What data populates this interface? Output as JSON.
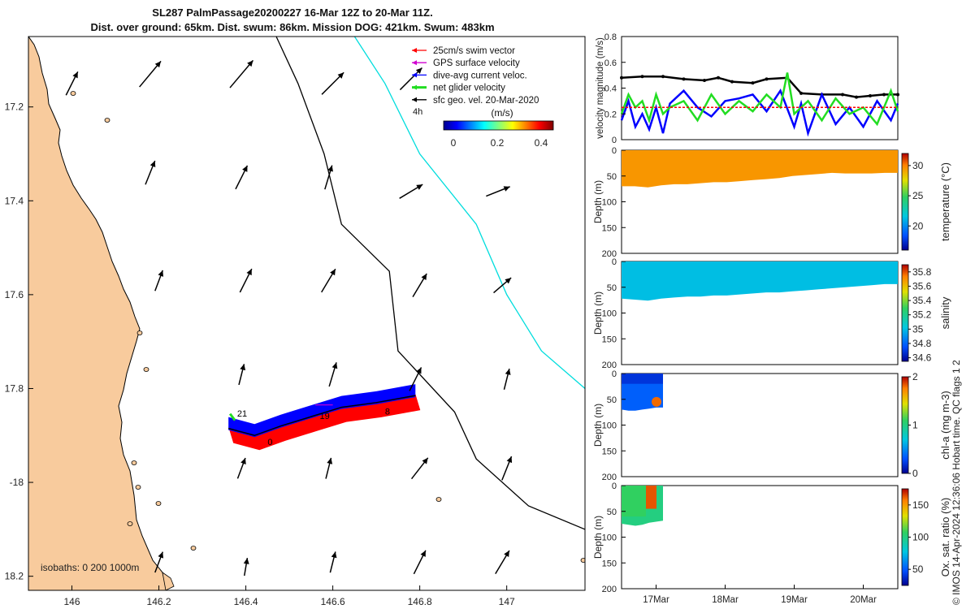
{
  "title": {
    "line1": "SL287 PalmPassage20200227 16-Mar 12Z to 20-Mar 11Z.",
    "line2": "Dist. over ground: 65km. Dist. swum: 86km. Mission DOG: 421km. Swum: 483km"
  },
  "footer_note": "© IMOS 14-Apr-2024 12:36:06 Hobart time. QC flags 1  2",
  "colors": {
    "land": "#f8cb9d",
    "swim": "#ff0000",
    "gps": "#d000d0",
    "current": "#0000ff",
    "net": "#22dd22",
    "geo": "#000000",
    "coast_line": "#00dddd"
  },
  "chart_data": [
    {
      "id": "map",
      "type": "scatter",
      "title": "SL287 PalmPassage20200227 16-Mar 12Z to 20-Mar 11Z.",
      "xlim": [
        145.9,
        147.18
      ],
      "ylim": [
        -18.23,
        -17.05
      ],
      "xticks": [
        146,
        146.2,
        146.4,
        146.6,
        146.8,
        147
      ],
      "xtick_labels": [
        "146",
        "146.2",
        "146.4",
        "146.6",
        "146.8",
        "147"
      ],
      "yticks": [
        -17.2,
        -17.4,
        -17.6,
        -17.8,
        -18,
        -18.2
      ],
      "ytick_labels": [
        "17.2",
        "17.4",
        "17.6",
        "17.8",
        "-18",
        "18.2"
      ],
      "legend": [
        {
          "label": "25cm/s swim vector",
          "color": "#ff0000"
        },
        {
          "label": "GPS surface velocity",
          "color": "#d000d0"
        },
        {
          "label": "dive-avg current veloc.",
          "color": "#0000ff"
        },
        {
          "label": "net glider velocity",
          "color": "#22dd22"
        },
        {
          "label": "sfc geo. vel. 20-Mar-2020",
          "color": "#000000"
        }
      ],
      "legend_extra": "4h",
      "colorbar": {
        "label": "(m/s)",
        "ticks": [
          0,
          0.2,
          0.4
        ],
        "tick_labels": [
          "0",
          "0.2",
          "0.4"
        ],
        "range": [
          0,
          0.5
        ]
      },
      "isobath_label": "isobaths: 0   200  1000m",
      "geo_vectors": [
        {
          "lon": 146.0,
          "lat": -17.15,
          "u": 0.5,
          "v": 1.0
        },
        {
          "lon": 146.18,
          "lat": -17.13,
          "u": 1.0,
          "v": 1.2
        },
        {
          "lon": 146.39,
          "lat": -17.13,
          "u": 1.1,
          "v": 1.3
        },
        {
          "lon": 146.6,
          "lat": -17.15,
          "u": 1.0,
          "v": 1.0
        },
        {
          "lon": 146.78,
          "lat": -17.14,
          "u": 1.0,
          "v": 1.0
        },
        {
          "lon": 146.18,
          "lat": -17.34,
          "u": 0.4,
          "v": 1.0
        },
        {
          "lon": 146.39,
          "lat": -17.35,
          "u": 0.5,
          "v": 1.0
        },
        {
          "lon": 146.59,
          "lat": -17.35,
          "u": 0.3,
          "v": 1.0
        },
        {
          "lon": 146.78,
          "lat": -17.38,
          "u": 1.0,
          "v": 0.6
        },
        {
          "lon": 146.98,
          "lat": -17.38,
          "u": 1.0,
          "v": 0.4
        },
        {
          "lon": 146.2,
          "lat": -17.57,
          "u": 0.3,
          "v": 0.8
        },
        {
          "lon": 146.4,
          "lat": -17.57,
          "u": 0.5,
          "v": 1.0
        },
        {
          "lon": 146.59,
          "lat": -17.57,
          "u": 0.6,
          "v": 1.0
        },
        {
          "lon": 146.8,
          "lat": -17.58,
          "u": 0.6,
          "v": 1.0
        },
        {
          "lon": 146.99,
          "lat": -17.58,
          "u": 0.7,
          "v": 0.6
        },
        {
          "lon": 146.39,
          "lat": -17.77,
          "u": 0.2,
          "v": 0.8
        },
        {
          "lon": 146.6,
          "lat": -17.77,
          "u": 0.3,
          "v": 1.0
        },
        {
          "lon": 146.79,
          "lat": -17.78,
          "u": 0.5,
          "v": 1.0
        },
        {
          "lon": 147.0,
          "lat": -17.78,
          "u": 0.2,
          "v": 0.8
        },
        {
          "lon": 146.39,
          "lat": -17.97,
          "u": 0.3,
          "v": 0.8
        },
        {
          "lon": 146.59,
          "lat": -17.97,
          "u": 0.2,
          "v": 0.8
        },
        {
          "lon": 146.8,
          "lat": -17.97,
          "u": 0.7,
          "v": 0.9
        },
        {
          "lon": 147.0,
          "lat": -17.97,
          "u": 0.4,
          "v": 1.0
        },
        {
          "lon": 146.2,
          "lat": -18.17,
          "u": 0.3,
          "v": 0.8
        },
        {
          "lon": 146.4,
          "lat": -18.18,
          "u": 0.1,
          "v": 0.6
        },
        {
          "lon": 146.6,
          "lat": -18.17,
          "u": 0.2,
          "v": 0.8
        },
        {
          "lon": 146.8,
          "lat": -18.17,
          "u": 0.5,
          "v": 1.0
        },
        {
          "lon": 146.99,
          "lat": -18.17,
          "u": 0.6,
          "v": 1.0
        }
      ],
      "glider_track": [
        {
          "lon": 146.36,
          "lat": -17.885
        },
        {
          "lon": 146.42,
          "lat": -17.9
        },
        {
          "lon": 146.48,
          "lat": -17.88
        },
        {
          "lon": 146.55,
          "lat": -17.86
        },
        {
          "lon": 146.62,
          "lat": -17.84
        },
        {
          "lon": 146.7,
          "lat": -17.83
        },
        {
          "lon": 146.79,
          "lat": -17.815
        }
      ],
      "track_day_labels": [
        {
          "lon": 146.38,
          "lat": -17.86,
          "text": "21"
        },
        {
          "lon": 146.45,
          "lat": -17.92,
          "text": "0"
        },
        {
          "lon": 146.57,
          "lat": -17.865,
          "text": "19"
        },
        {
          "lon": 146.72,
          "lat": -17.855,
          "text": "8"
        }
      ],
      "isobath_1000": [
        {
          "lon": 146.47,
          "lat": -17.05
        },
        {
          "lon": 146.52,
          "lat": -17.15
        },
        {
          "lon": 146.58,
          "lat": -17.3
        },
        {
          "lon": 146.62,
          "lat": -17.45
        },
        {
          "lon": 146.73,
          "lat": -17.55
        },
        {
          "lon": 146.75,
          "lat": -17.72
        },
        {
          "lon": 146.88,
          "lat": -17.85
        },
        {
          "lon": 146.93,
          "lat": -17.95
        },
        {
          "lon": 147.05,
          "lat": -18.05
        },
        {
          "lon": 147.18,
          "lat": -18.1
        }
      ],
      "isobath_coast": [
        {
          "lon": 146.65,
          "lat": -17.05
        },
        {
          "lon": 146.72,
          "lat": -17.15
        },
        {
          "lon": 146.8,
          "lat": -17.3
        },
        {
          "lon": 146.93,
          "lat": -17.45
        },
        {
          "lon": 147.0,
          "lat": -17.6
        },
        {
          "lon": 147.08,
          "lat": -17.72
        },
        {
          "lon": 147.18,
          "lat": -17.8
        }
      ]
    },
    {
      "id": "velocity",
      "type": "line",
      "ylabel": "velocity magnitude (m/s)",
      "xlim": [
        16.5,
        20.5
      ],
      "ylim": [
        0,
        0.8
      ],
      "yticks": [
        0,
        0.2,
        0.4,
        0.6,
        0.8
      ],
      "ytick_labels": [
        "0",
        "0.2",
        "0.4",
        "0.6",
        "0.8"
      ],
      "series": [
        {
          "name": "sfc geo. vel.",
          "color": "#000000",
          "x": [
            16.5,
            16.8,
            17.1,
            17.4,
            17.7,
            17.9,
            18.1,
            18.4,
            18.6,
            18.9,
            19.1,
            19.4,
            19.7,
            19.9,
            20.1,
            20.3,
            20.5
          ],
          "y": [
            0.48,
            0.49,
            0.49,
            0.47,
            0.46,
            0.48,
            0.45,
            0.44,
            0.47,
            0.48,
            0.36,
            0.35,
            0.35,
            0.33,
            0.34,
            0.35,
            0.35
          ]
        },
        {
          "name": "dive-avg current veloc.",
          "color": "#0000ff",
          "x": [
            16.5,
            16.6,
            16.7,
            16.8,
            16.9,
            17.0,
            17.1,
            17.2,
            17.4,
            17.6,
            17.8,
            18.0,
            18.2,
            18.4,
            18.6,
            18.8,
            19.0,
            19.1,
            19.2,
            19.4,
            19.6,
            19.8,
            20.0,
            20.2,
            20.4,
            20.5
          ],
          "y": [
            0.15,
            0.3,
            0.1,
            0.2,
            0.08,
            0.25,
            0.05,
            0.28,
            0.38,
            0.25,
            0.18,
            0.3,
            0.32,
            0.35,
            0.22,
            0.38,
            0.1,
            0.28,
            0.05,
            0.35,
            0.12,
            0.25,
            0.1,
            0.3,
            0.15,
            0.28
          ]
        },
        {
          "name": "net glider velocity",
          "color": "#22dd22",
          "x": [
            16.5,
            16.6,
            16.7,
            16.8,
            16.9,
            17.0,
            17.1,
            17.2,
            17.4,
            17.6,
            17.8,
            18.0,
            18.2,
            18.4,
            18.6,
            18.8,
            18.9,
            19.0,
            19.2,
            19.4,
            19.6,
            19.8,
            20.0,
            20.2,
            20.4,
            20.5
          ],
          "y": [
            0.2,
            0.35,
            0.25,
            0.3,
            0.15,
            0.35,
            0.2,
            0.25,
            0.3,
            0.15,
            0.35,
            0.2,
            0.3,
            0.22,
            0.35,
            0.25,
            0.52,
            0.2,
            0.3,
            0.15,
            0.32,
            0.2,
            0.25,
            0.12,
            0.38,
            0.22
          ]
        },
        {
          "name": "swim",
          "color": "#ff0000",
          "x": [
            16.5,
            20.5
          ],
          "y": [
            0.25,
            0.25
          ]
        }
      ]
    },
    {
      "id": "temperature",
      "type": "heatmap",
      "ylabel": "Depth (m)",
      "cbar_label": "temperature (°C)",
      "ylim": [
        0,
        200
      ],
      "yticks": [
        0,
        50,
        100,
        150,
        200
      ],
      "ytick_labels": [
        "0",
        "50",
        "100",
        "150",
        "200"
      ],
      "clim": [
        16,
        32
      ],
      "cticks": [
        20,
        25,
        30
      ],
      "ctick_labels": [
        "20",
        "25",
        "30"
      ],
      "data_xlim": [
        16.5,
        20.5
      ],
      "depth_profile": [
        70,
        70,
        72,
        68,
        66,
        66,
        64,
        62,
        62,
        60,
        58,
        56,
        54,
        50,
        48,
        46,
        44,
        45,
        45,
        45,
        44,
        44
      ],
      "fill_value": 29.5
    },
    {
      "id": "salinity",
      "type": "heatmap",
      "ylabel": "Depth (m)",
      "cbar_label": "salinity",
      "ylim": [
        0,
        200
      ],
      "yticks": [
        0,
        50,
        100,
        150,
        200
      ],
      "ytick_labels": [
        "0",
        "50",
        "100",
        "150",
        "200"
      ],
      "clim": [
        34.55,
        35.9
      ],
      "cticks": [
        34.6,
        34.8,
        35,
        35.2,
        35.4,
        35.6,
        35.8
      ],
      "ctick_labels": [
        "34.6",
        "34.8",
        "35",
        "35.2",
        "35.4",
        "35.6",
        "35.8"
      ],
      "data_xlim": [
        16.5,
        20.5
      ],
      "depth_profile": [
        72,
        74,
        76,
        72,
        70,
        68,
        68,
        66,
        66,
        64,
        62,
        60,
        60,
        58,
        56,
        54,
        52,
        50,
        48,
        46,
        44,
        44
      ],
      "fill_value": 35.0
    },
    {
      "id": "chla",
      "type": "heatmap",
      "ylabel": "Depth (m)",
      "cbar_label": "chl-a (mg m-3)",
      "ylim": [
        0,
        200
      ],
      "yticks": [
        0,
        50,
        100,
        150,
        200
      ],
      "ytick_labels": [
        "0",
        "50",
        "100",
        "150",
        "200"
      ],
      "clim": [
        0,
        2
      ],
      "cticks": [
        0,
        1,
        2
      ],
      "ctick_labels": [
        "0",
        "1",
        "2"
      ],
      "data_xlim": [
        16.5,
        17.1
      ],
      "depth_profile": [
        70,
        72,
        72,
        70,
        68,
        66,
        66
      ],
      "fill_value": 0.35
    },
    {
      "id": "oxygen",
      "type": "heatmap",
      "ylabel": "Depth (m)",
      "cbar_label": "Ox. sat. ratio (%)",
      "ylim": [
        0,
        200
      ],
      "yticks": [
        0,
        50,
        100,
        150,
        200
      ],
      "ytick_labels": [
        "0",
        "50",
        "100",
        "150",
        "200"
      ],
      "clim": [
        25,
        175
      ],
      "cticks": [
        50,
        100,
        150
      ],
      "ctick_labels": [
        "50",
        "100",
        "150"
      ],
      "data_xlim": [
        16.5,
        17.1
      ],
      "depth_profile": [
        74,
        76,
        78,
        76,
        72,
        70,
        68
      ],
      "fill_value": 100,
      "xticks": [
        17,
        18,
        19,
        20
      ],
      "xtick_labels": [
        "17Mar",
        "18Mar",
        "19Mar",
        "20Mar"
      ]
    }
  ]
}
